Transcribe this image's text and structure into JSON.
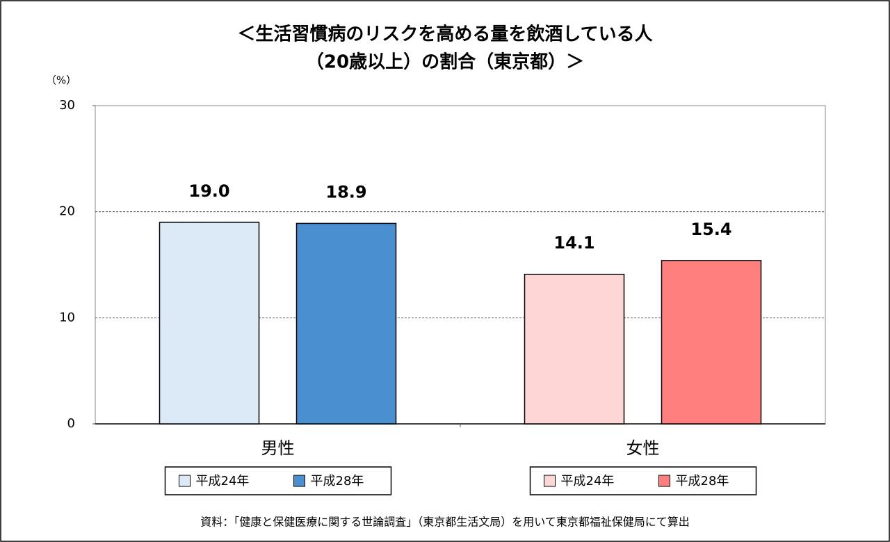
{
  "chart_data": {
    "type": "bar",
    "title": [
      "＜生活習慣病のリスクを高める量を飲酒している人",
      "（20歳以上）の割合（東京都）＞"
    ],
    "y_unit": "（%）",
    "categories": [
      "男性",
      "女性"
    ],
    "series": [
      {
        "name": "平成24年",
        "colors": [
          "#dce9f6",
          "#ffd6d6"
        ],
        "values": [
          19.0,
          14.1
        ],
        "value_labels": [
          "19.0",
          "14.1"
        ]
      },
      {
        "name": "平成28年",
        "colors": [
          "#4a8fd0",
          "#ff7f7f"
        ],
        "values": [
          18.9,
          15.4
        ],
        "value_labels": [
          "18.9",
          "15.4"
        ]
      }
    ],
    "ylim": [
      0,
      30
    ],
    "yticks": [
      0,
      10,
      20,
      30
    ],
    "grid": true,
    "source": "資料：｢健康と保健医療に関する世論調査｣（東京都生活文局）を用いて東京都福祉保健局にて算出"
  }
}
